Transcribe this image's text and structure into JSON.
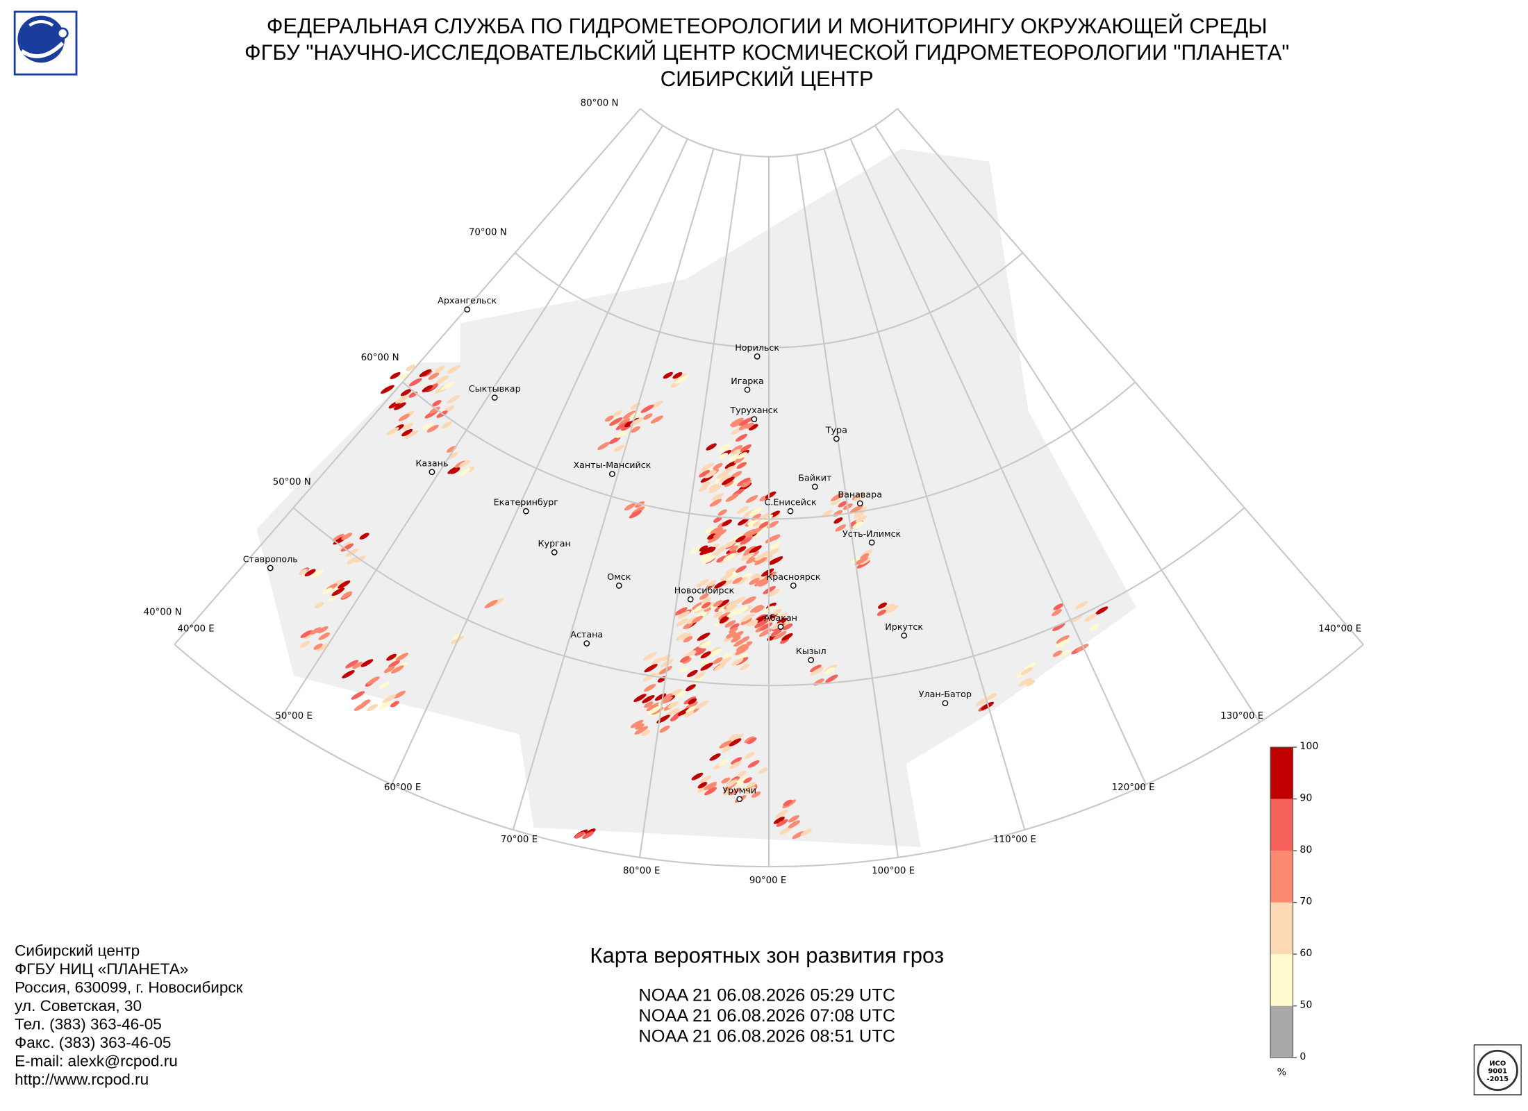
{
  "header": {
    "lines": [
      "ФЕДЕРАЛЬНАЯ СЛУЖБА ПО ГИДРОМЕТЕОРОЛОГИИ И МОНИТОРИНГУ ОКРУЖАЮЩЕЙ СРЕДЫ",
      "ФГБУ \"НАУЧНО-ИССЛЕДОВАТЕЛЬСКИЙ ЦЕНТР КОСМИЧЕСКОЙ ГИДРОМЕТЕОРОЛОГИИ \"ПЛАНЕТА\"",
      "СИБИРСКИЙ ЦЕНТР"
    ]
  },
  "map": {
    "lat_labels": [
      "80°00 N",
      "70°00 N",
      "60°00 N",
      "50°00 N",
      "40°00 N"
    ],
    "lon_labels": [
      "40°00 E",
      "50°00 E",
      "60°00 E",
      "70°00 E",
      "80°00 E",
      "90°00 E",
      "100°00 E",
      "110°00 E",
      "120°00 E",
      "130°00 E",
      "140°00 E"
    ],
    "cities": [
      "Архангельск",
      "Сыктывкар",
      "Казань",
      "Ставрополь",
      "Екатеринбург",
      "Курган",
      "Омск",
      "Астана",
      "Ханты-Мансийск",
      "Норильск",
      "Игарка",
      "Туруханск",
      "Тура",
      "Байкит",
      "Ванавара",
      "С.Енисейск",
      "Усть-Илимск",
      "Красноярск",
      "Новосибирск",
      "Абакан",
      "Кызыл",
      "Иркутск",
      "Улан-Батор",
      "Урумчи"
    ]
  },
  "colorbar": {
    "ticks": [
      0,
      50,
      60,
      70,
      80,
      90,
      100
    ],
    "colors": [
      "#a9a9a9",
      "#fffacd",
      "#fdd8b4",
      "#fb8a70",
      "#f6605a",
      "#c00000"
    ],
    "unit": "%"
  },
  "title": "Карта вероятных зон развития гроз",
  "passes": [
    "NOAA 21 06.08.2026  05:29 UTC",
    "NOAA 21 06.08.2026  07:08 UTC",
    "NOAA 21 06.08.2026  08:51 UTC"
  ],
  "contact": [
    "Сибирский центр",
    "ФГБУ НИЦ «ПЛАНЕТА»",
    "Россия, 630099, г. Новосибирск",
    "ул. Советская, 30",
    "Тел. (383) 363-46-05",
    "Факс. (383) 363-46-05",
    "E-mail: alexk@rcpod.ru",
    "http://www.rcpod.ru"
  ],
  "iso": {
    "lines": [
      "ИСО",
      "9001",
      "-2015"
    ]
  }
}
